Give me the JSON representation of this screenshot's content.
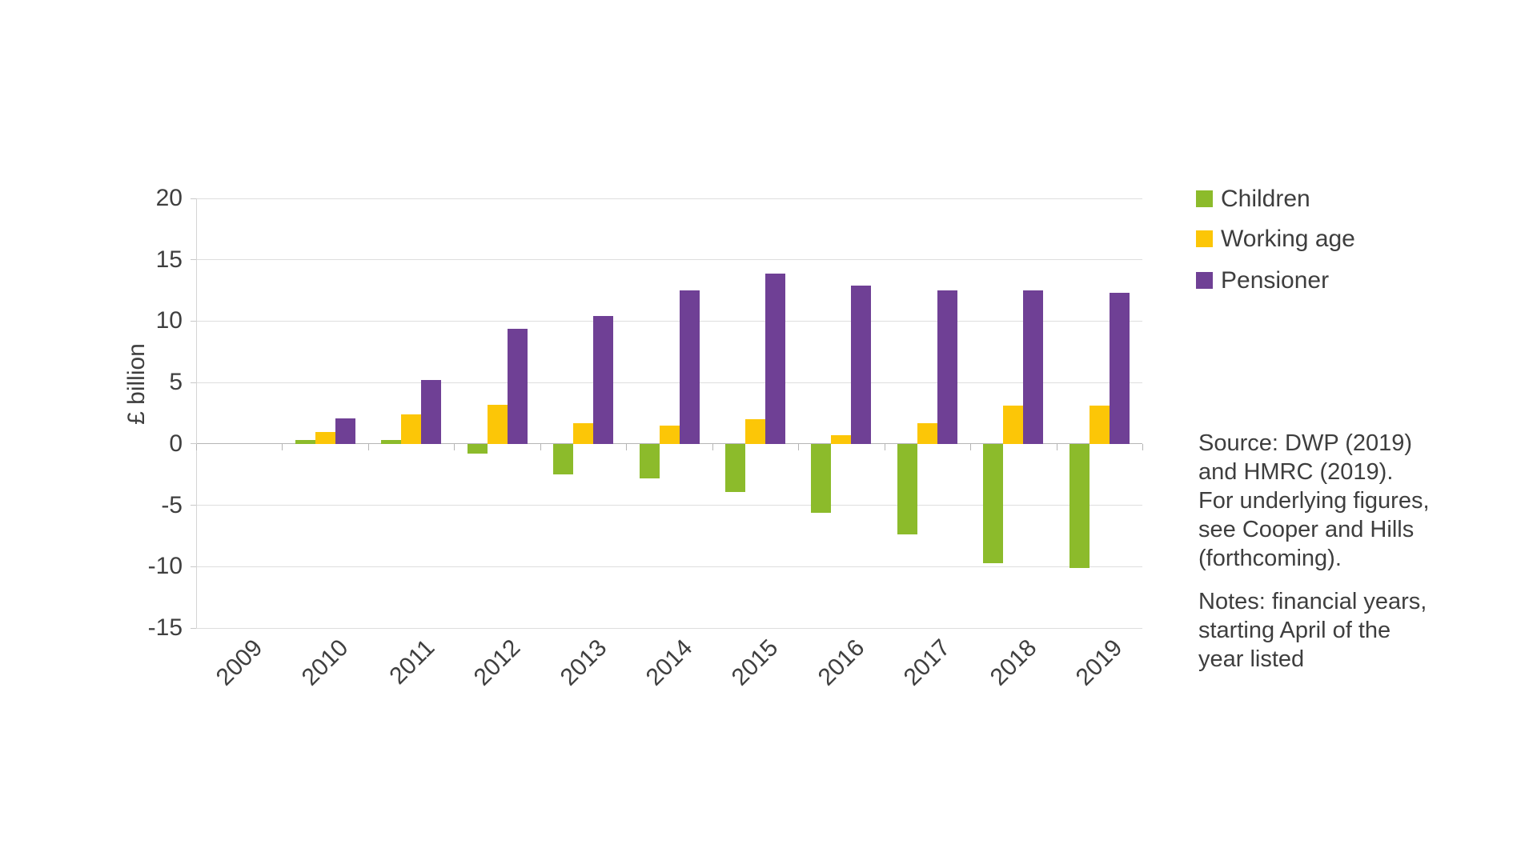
{
  "chart_data": {
    "type": "bar",
    "title": "",
    "xlabel": "",
    "ylabel": "£ billion",
    "categories": [
      "2009",
      "2010",
      "2011",
      "2012",
      "2013",
      "2014",
      "2015",
      "2016",
      "2017",
      "2018",
      "2019"
    ],
    "series": [
      {
        "name": "Children",
        "color": "#8cbb2b",
        "values": [
          0,
          0.3,
          0.3,
          -0.8,
          -2.5,
          -2.8,
          -3.9,
          -5.6,
          -7.4,
          -9.7,
          -10.1
        ]
      },
      {
        "name": "Working age",
        "color": "#fcc607",
        "values": [
          0,
          1.0,
          2.4,
          3.2,
          1.7,
          1.5,
          2.0,
          0.7,
          1.7,
          3.1,
          3.1
        ]
      },
      {
        "name": "Pensioner",
        "color": "#6f4095",
        "values": [
          0,
          2.1,
          5.2,
          9.4,
          10.4,
          12.5,
          13.9,
          12.9,
          12.5,
          12.5,
          12.3
        ]
      }
    ],
    "ylim": [
      -15,
      20
    ],
    "yticks": [
      20,
      15,
      10,
      5,
      0,
      -5,
      -10,
      -15
    ],
    "grid": true,
    "legend_position": "top-right"
  },
  "legend": {
    "children_label": "Children",
    "working_age_label": "Working age",
    "pensioner_label": "Pensioner"
  },
  "source": {
    "lines": [
      "Source: DWP (2019)",
      "and HMRC (2019).",
      "For underlying figures,",
      "see Cooper and Hills",
      "(forthcoming)."
    ]
  },
  "notes": {
    "lines": [
      "Notes: financial years,",
      "starting April of the",
      "year listed"
    ]
  },
  "colors": {
    "grid": "#dedede",
    "zero_axis": "#b5b5b5",
    "text": "#3f3f3f",
    "background": "#ffffff"
  }
}
